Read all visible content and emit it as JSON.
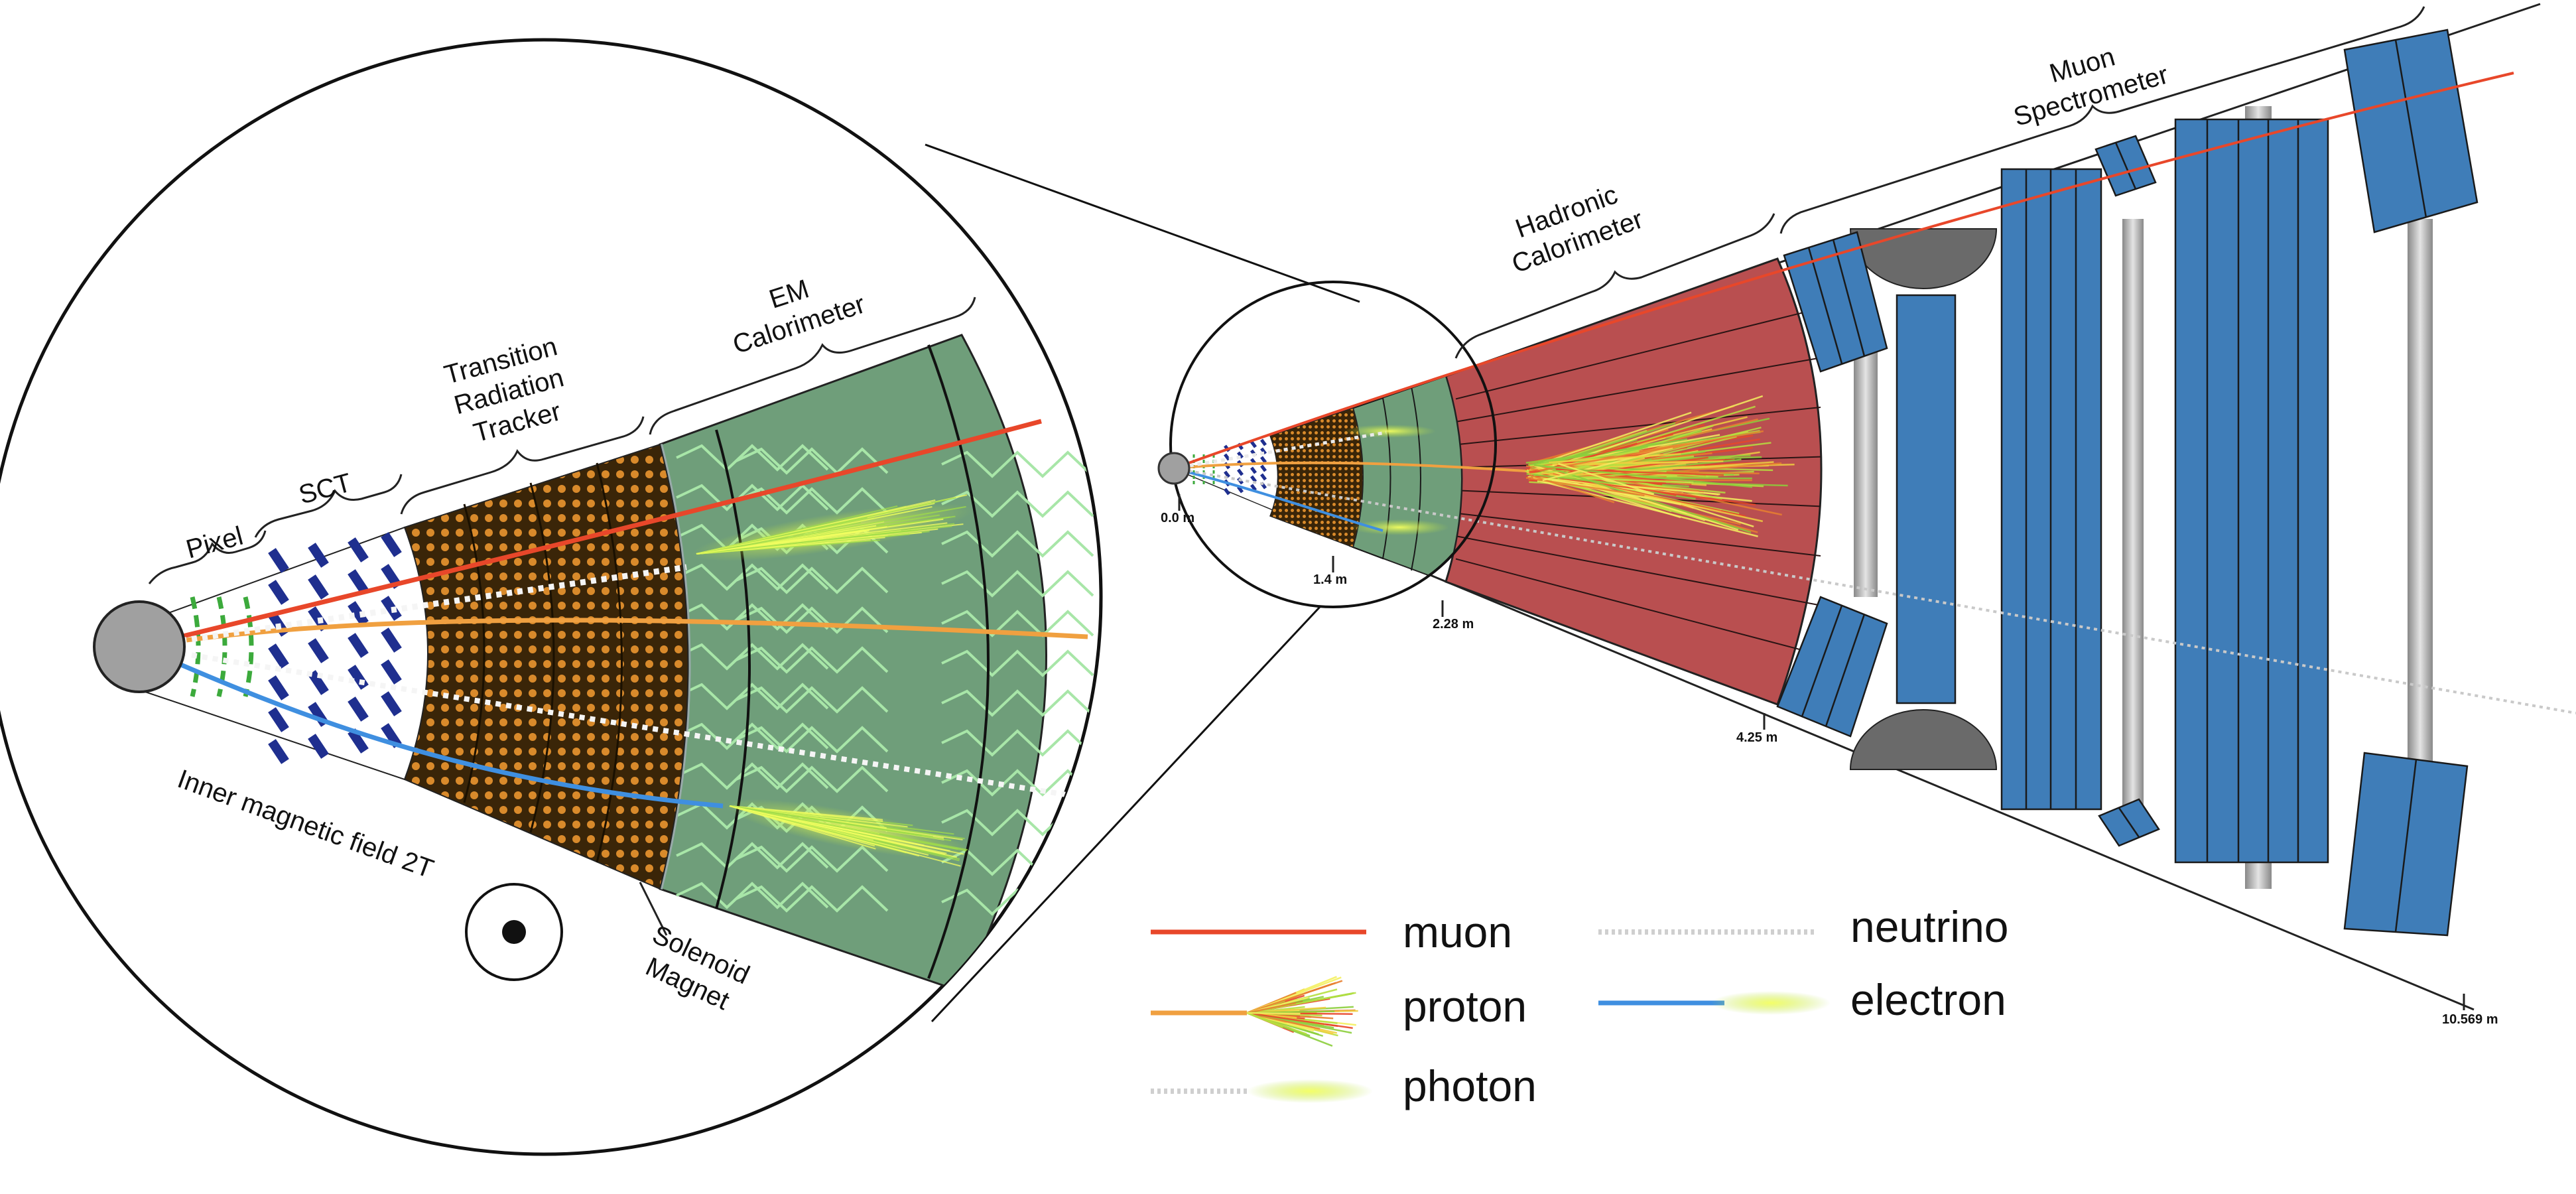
{
  "zoom_labels": {
    "pixel": "Pixel",
    "sct": "SCT",
    "trt": [
      "Transition",
      "Radiation",
      "Tracker"
    ],
    "em": [
      "EM",
      "Calorimeter"
    ],
    "field": "Inner magnetic field 2T",
    "solenoid": [
      "Solenoid",
      "Magnet"
    ]
  },
  "main_labels": {
    "hadronic": [
      "Hadronic",
      "Calorimeter"
    ],
    "muon": [
      "Muon",
      "Spectrometer"
    ]
  },
  "distances": [
    "0.0 m",
    "1.4 m",
    "2.28 m",
    "4.25 m",
    "10.569 m"
  ],
  "legend": [
    {
      "name": "muon",
      "color": "#e8472a",
      "style": "line"
    },
    {
      "name": "proton",
      "color": "#f0a040",
      "style": "hadron-shower"
    },
    {
      "name": "photon",
      "color": "#c8c8c8",
      "style": "dotted-em"
    },
    {
      "name": "neutrino",
      "color": "#c8c8c8",
      "style": "dotted"
    },
    {
      "name": "electron",
      "color": "#3f8fe0",
      "style": "line-em"
    }
  ],
  "colors": {
    "muon": "#e8472a",
    "proton": "#f0a040",
    "electron": "#3f8fe0",
    "em_calorimeter": "#6f9e7a",
    "hadronic_calorimeter": "#b94f50",
    "muon_chambers": "#3f7db8",
    "trt": "#7a4a12",
    "sct": "#1f2f8f",
    "pixel": "#3caa3c",
    "beampipe": "#a0a0a0"
  }
}
